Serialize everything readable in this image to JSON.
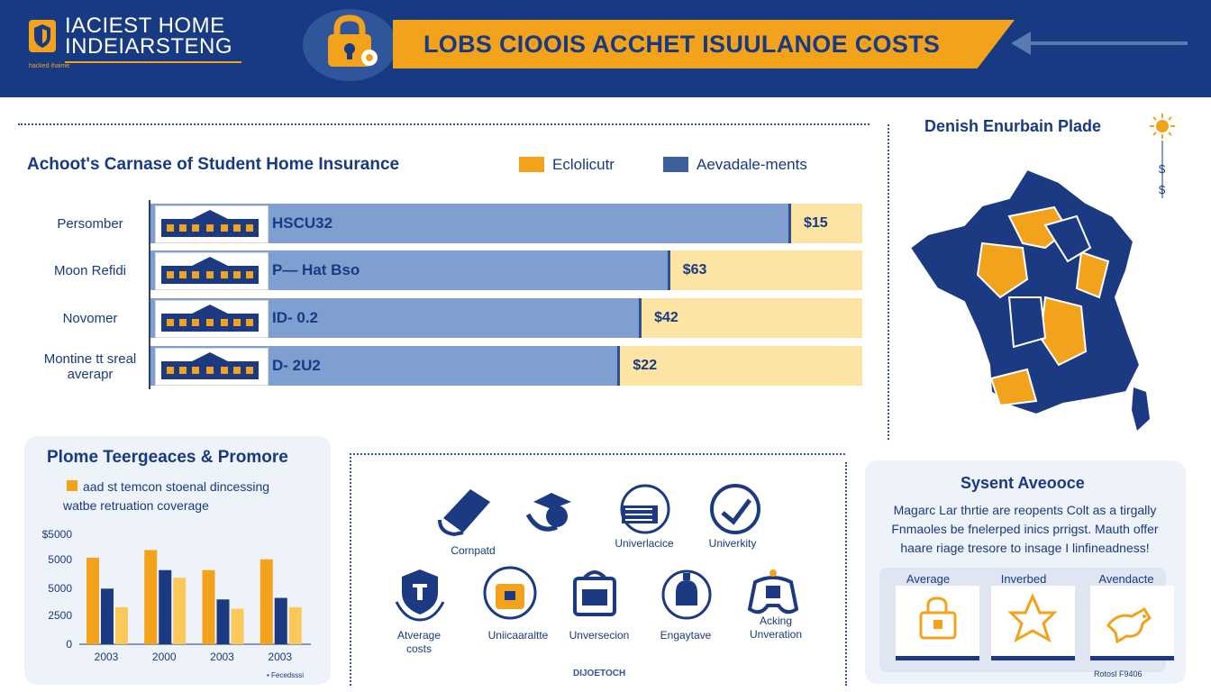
{
  "header": {
    "logo_title": "IACIEST HOME\nINDEIARSTENG",
    "logo_sub": "hacked ihaime",
    "banner": "LOBS CIOOIS ACCHET ISUULANOE COSTS",
    "colors": {
      "navy": "#173a82",
      "orange": "#f3a21c"
    }
  },
  "bar_chart": {
    "title": "Achoot's Carnase of Student Home Insurance",
    "legend": [
      {
        "label": "Eclolicutr",
        "color": "#f3a21c"
      },
      {
        "label": "Aevadale-ments",
        "color": "#3d5f9b"
      }
    ],
    "rows": [
      {
        "label": "Persomber",
        "text": "HSCU32",
        "price": "$15",
        "fraction": 0.9
      },
      {
        "label": "Moon Refidi",
        "text": "P— Hat Bso",
        "price": "$63",
        "fraction": 0.73
      },
      {
        "label": "Novomer",
        "text": "ID- 0.2",
        "price": "$42",
        "fraction": 0.69
      },
      {
        "label": "Montine tt sreal\naverapr",
        "text": "D- 2U2",
        "price": "$22",
        "fraction": 0.66
      }
    ]
  },
  "map": {
    "title": "Denish Enurbain Plade",
    "side_symbols": [
      "$",
      "$"
    ]
  },
  "panel_left": {
    "title": "Plome Teergeaces & Promore",
    "note": "aad st temcon stoenal dincessing\nwatbe retruation coverage",
    "credit": "• Fecedsssi"
  },
  "chart_data": {
    "type": "bar",
    "categories": [
      "2003",
      "2000",
      "2003",
      "2003"
    ],
    "y_ticks": [
      "$5000",
      "5000",
      "5000",
      "2500",
      "0"
    ],
    "series": [
      {
        "values": [
          5600,
          6100,
          4800,
          5500
        ],
        "color": "#f3a21c"
      },
      {
        "values": [
          3600,
          4800,
          2900,
          3000
        ],
        "color": "#1b3a82"
      },
      {
        "values": [
          2400,
          4300,
          2300,
          2400
        ],
        "color": "#fbc85a"
      }
    ],
    "ylim": [
      0,
      7000
    ]
  },
  "icons_panel": {
    "items": [
      {
        "icon": "book-icon",
        "label": "Cornpatd"
      },
      {
        "icon": "hat-icon",
        "label": ""
      },
      {
        "icon": "building-icon",
        "label": "Univerlacice"
      },
      {
        "icon": "check-icon",
        "label": "Univerkity"
      },
      {
        "icon": "shield-icon",
        "label": "Atverage\ncosts"
      },
      {
        "icon": "lock-icon",
        "label": "Uniicaaraltte"
      },
      {
        "icon": "bag-icon",
        "label": "Unversecion"
      },
      {
        "icon": "bell-icon",
        "label": "Engaytave"
      },
      {
        "icon": "controller-icon",
        "label": "Acking\nUnveration"
      }
    ],
    "credit": "DIJOETOCH"
  },
  "panel_right": {
    "title": "Sysent Aveooce",
    "text": "Magarc Lar thrtie are reopents Colt as a tirgally Fnmaoles be fnelerped inics prrigst. Mauth offer haare riage tresore to insage I linfineadness!",
    "cards": [
      {
        "label": "Average",
        "icon": "lock-icon"
      },
      {
        "label": "Inverbed",
        "icon": "star-icon"
      },
      {
        "label": "Avendacte",
        "icon": "dog-icon"
      }
    ],
    "credit": "Rotosl F9406"
  }
}
